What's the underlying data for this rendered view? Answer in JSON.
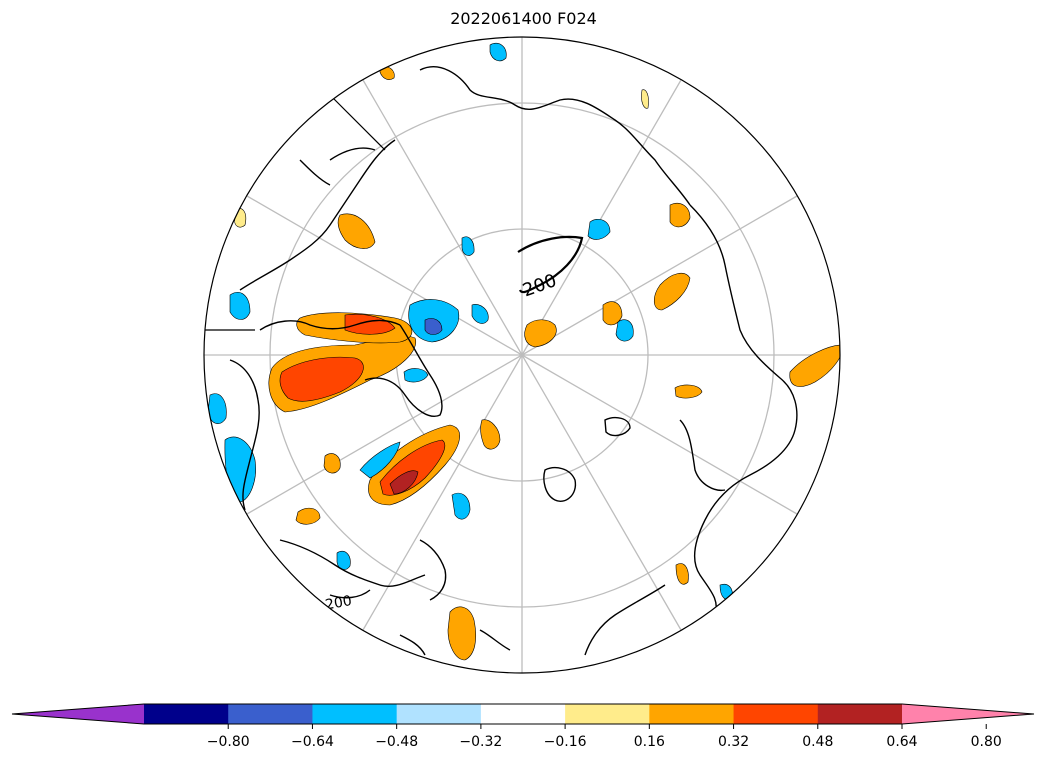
{
  "title": "2022061400 F024",
  "map": {
    "projection": "north-polar-stereographic",
    "contour_labels": [
      "200",
      "200"
    ],
    "field_colors": {
      "pos_1": "#ffec8b",
      "pos_2": "#ffa500",
      "pos_3": "#ff4500",
      "pos_4": "#b22222",
      "neg_1": "#b0e2ff",
      "neg_2": "#00bfff",
      "neg_3": "#3a5fcd",
      "neg_4": "#00008b"
    }
  },
  "colorbar": {
    "extend": "both",
    "colors": [
      "#9932cc",
      "#00008b",
      "#3a5fcd",
      "#00bfff",
      "#b0e2ff",
      "#ffffff",
      "#ffec8b",
      "#ffa500",
      "#ff4500",
      "#b22222",
      "#ff82ab"
    ],
    "ticks": [
      "−0.80",
      "−0.64",
      "−0.48",
      "−0.32",
      "−0.16",
      "0.16",
      "0.32",
      "0.48",
      "0.64",
      "0.80"
    ]
  }
}
